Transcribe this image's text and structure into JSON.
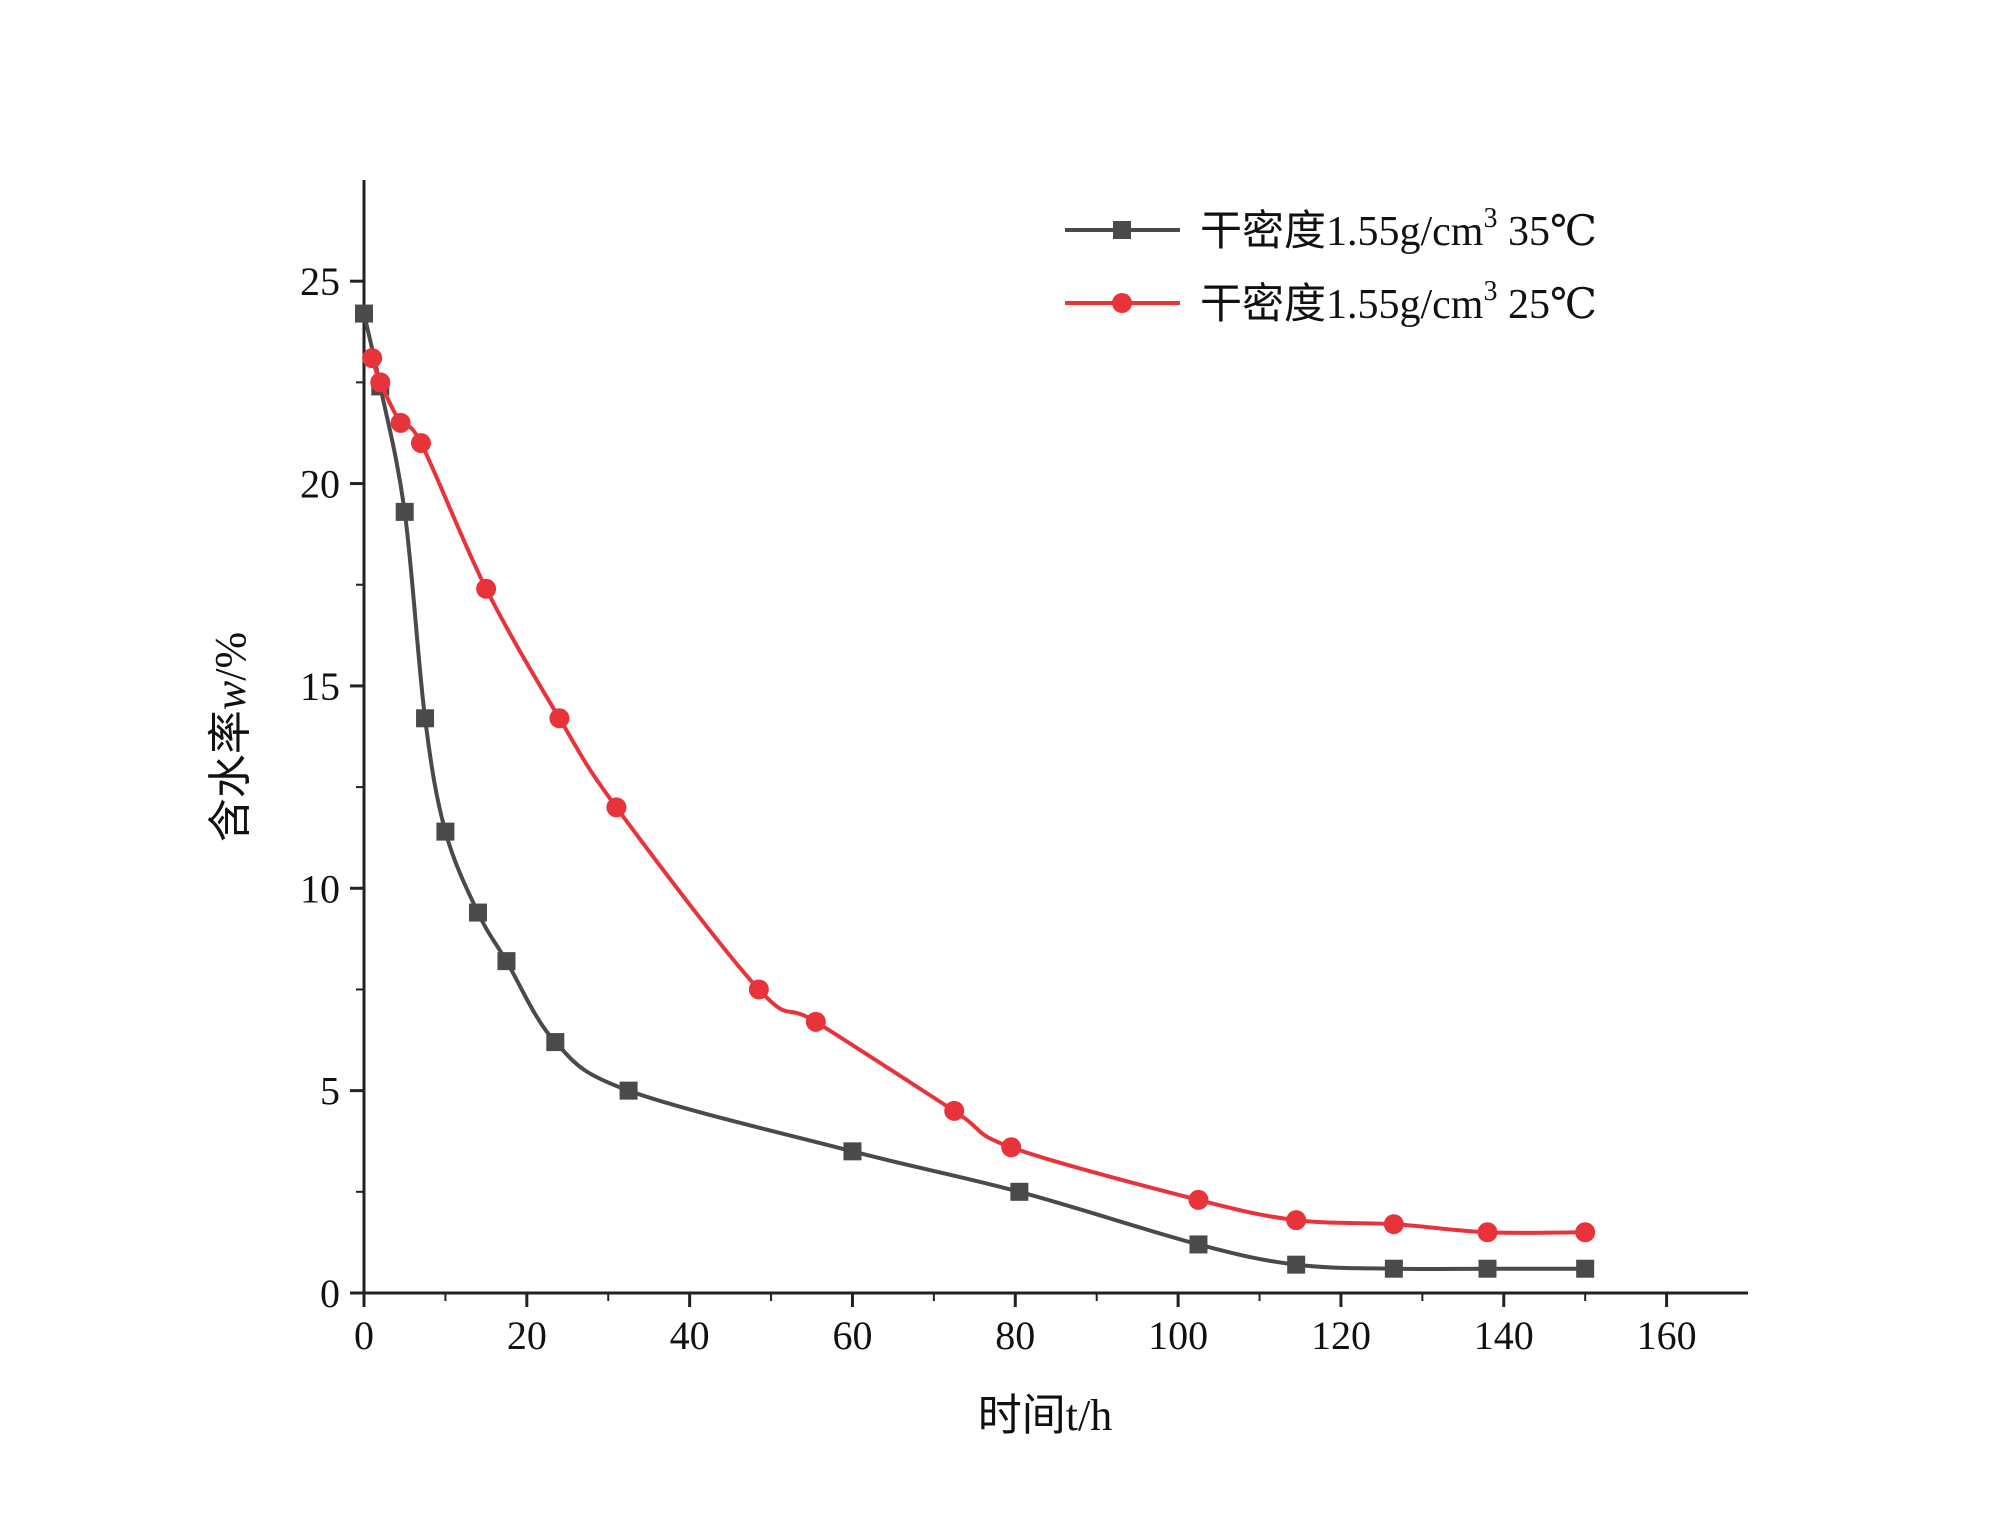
{
  "chart_data": {
    "type": "line",
    "title": "",
    "xlabel": "时间t/h",
    "ylabel_main": "含水率",
    "ylabel_symbol": "w",
    "ylabel_unit": "/%",
    "xlim": [
      0,
      170
    ],
    "ylim": [
      0,
      27.5
    ],
    "xticks": [
      0,
      20,
      40,
      60,
      80,
      100,
      120,
      140,
      160
    ],
    "yticks": [
      0,
      5,
      10,
      15,
      20,
      25
    ],
    "legend_position": "top-right",
    "grid": false,
    "series": [
      {
        "name_prefix": "干密度1.55g/cm",
        "name_sup": "3",
        "name_suffix": " 35℃",
        "color": "#4a4a4a",
        "marker": "square",
        "x": [
          0,
          2,
          5,
          7.5,
          10,
          14,
          17.5,
          23.5,
          32.5,
          60,
          80.5,
          102.5,
          114.5,
          126.5,
          138,
          150
        ],
        "y": [
          24.2,
          22.4,
          19.3,
          14.2,
          11.4,
          9.4,
          8.2,
          6.2,
          5.0,
          3.5,
          2.5,
          1.2,
          0.7,
          0.6,
          0.6,
          0.6
        ]
      },
      {
        "name_prefix": "干密度1.55g/cm",
        "name_sup": "3",
        "name_suffix": " 25℃",
        "color": "#e8333b",
        "marker": "circle",
        "x": [
          1,
          2,
          4.5,
          7,
          15,
          24,
          31,
          48.5,
          55.5,
          72.5,
          79.5,
          102.5,
          114.5,
          126.5,
          138,
          150
        ],
        "y": [
          23.1,
          22.5,
          21.5,
          21.0,
          17.4,
          14.2,
          12.0,
          7.5,
          6.7,
          4.5,
          3.6,
          2.3,
          1.8,
          1.7,
          1.5,
          1.5
        ]
      }
    ]
  }
}
